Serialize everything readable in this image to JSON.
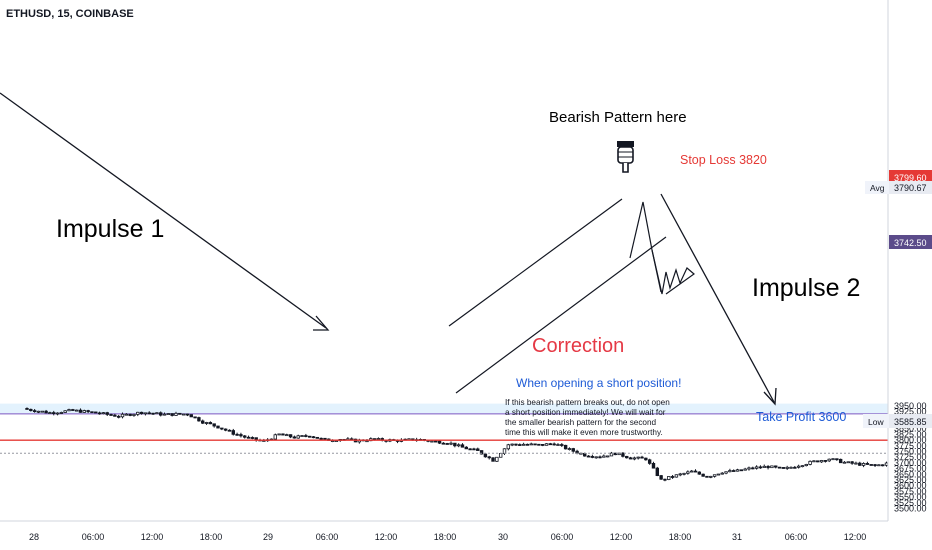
{
  "header": {
    "symbol": "ETHUSD, 15, COINBASE"
  },
  "colors": {
    "bull": "#131722",
    "bear": "#131722",
    "supply_zone": "#e3f2fd",
    "resistance": "#e53935",
    "accent_blue": "#1e5bd6",
    "correction": "#e53945"
  },
  "annotations": {
    "impulse1": "Impulse 1",
    "impulse2": "Impulse 2",
    "correction": "Correction",
    "pattern": "Bearish Pattern here",
    "stop_loss": "Stop Loss 3820",
    "take_profit": "Take Profit 3600",
    "note_title": "When opening a short position!",
    "note_lines": [
      "If this bearish pattern breaks out, do not open",
      "a short position immediately! We will wait for",
      "the smaller bearish pattern for the second",
      "time this will make it even more trustworthy."
    ]
  },
  "price_badges": {
    "resistance": {
      "label": "",
      "value": "3799.60"
    },
    "avg": {
      "label": "Avg",
      "value": "3790.67"
    },
    "current": {
      "label": "",
      "value": "3742.50"
    },
    "low": {
      "label": "Low",
      "value": "3585.85"
    }
  },
  "chart_data": {
    "type": "candlestick",
    "symbol": "ETHUSD",
    "interval": "15",
    "exchange": "COINBASE",
    "ylim": [
      3490,
      3960
    ],
    "yticks": [
      3500,
      3525,
      3550,
      3575,
      3600,
      3625,
      3650,
      3675,
      3700,
      3725,
      3750,
      3775,
      3800,
      3825,
      3850,
      3875,
      3900,
      3925,
      3950
    ],
    "xtick_labels": [
      "28",
      "06:00",
      "12:00",
      "18:00",
      "29",
      "06:00",
      "12:00",
      "18:00",
      "30",
      "06:00",
      "12:00",
      "18:00",
      "31",
      "06:00",
      "12:00"
    ],
    "supply_zone": [
      3915,
      3960
    ],
    "resistance_level": 3799.6,
    "current_level": 3742.5,
    "close_path": [
      [
        0,
        3935
      ],
      [
        6,
        3920
      ],
      [
        12,
        3930
      ],
      [
        18,
        3920
      ],
      [
        24,
        3905
      ],
      [
        30,
        3922
      ],
      [
        36,
        3912
      ],
      [
        42,
        3915
      ],
      [
        46,
        3880
      ],
      [
        50,
        3858
      ],
      [
        54,
        3830
      ],
      [
        58,
        3808
      ],
      [
        62,
        3795
      ],
      [
        66,
        3825
      ],
      [
        70,
        3812
      ],
      [
        74,
        3820
      ],
      [
        78,
        3800
      ],
      [
        82,
        3805
      ],
      [
        86,
        3797
      ],
      [
        90,
        3803
      ],
      [
        94,
        3800
      ],
      [
        98,
        3798
      ],
      [
        102,
        3804
      ],
      [
        106,
        3795
      ],
      [
        110,
        3790
      ],
      [
        114,
        3768
      ],
      [
        118,
        3752
      ],
      [
        122,
        3712
      ],
      [
        126,
        3780
      ],
      [
        130,
        3782
      ],
      [
        134,
        3778
      ],
      [
        138,
        3785
      ],
      [
        142,
        3758
      ],
      [
        146,
        3735
      ],
      [
        150,
        3728
      ],
      [
        154,
        3742
      ],
      [
        158,
        3722
      ],
      [
        162,
        3718
      ],
      [
        166,
        3625
      ],
      [
        170,
        3645
      ],
      [
        174,
        3662
      ],
      [
        178,
        3640
      ],
      [
        182,
        3660
      ],
      [
        186,
        3665
      ],
      [
        190,
        3678
      ],
      [
        194,
        3684
      ],
      [
        198,
        3672
      ],
      [
        202,
        3690
      ],
      [
        206,
        3706
      ],
      [
        210,
        3718
      ],
      [
        214,
        3702
      ],
      [
        218,
        3694
      ],
      [
        222,
        3688
      ],
      [
        226,
        3700
      ],
      [
        230,
        3712
      ],
      [
        234,
        3742
      ],
      [
        238,
        3738
      ],
      [
        242,
        3728
      ],
      [
        246,
        3716
      ],
      [
        250,
        3708
      ],
      [
        254,
        3716
      ],
      [
        258,
        3728
      ],
      [
        262,
        3738
      ],
      [
        266,
        3746
      ]
    ]
  }
}
